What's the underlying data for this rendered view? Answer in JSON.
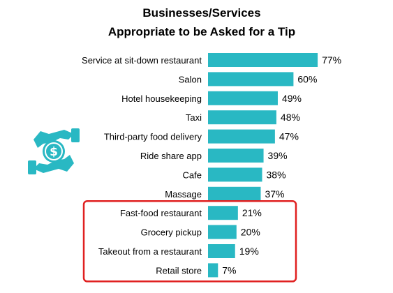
{
  "colors": {
    "bar": "#29B8C3",
    "highlight_box": "#E02020",
    "icon": "#29B8C3"
  },
  "icon": {
    "name": "hands-holding-dollar-coin-icon"
  },
  "chart_data": {
    "type": "bar",
    "orientation": "horizontal",
    "title": "Businesses/Services",
    "subtitle": "Appropriate to be Asked for a Tip",
    "categories": [
      "Service at sit-down restaurant",
      "Salon",
      "Hotel housekeeping",
      "Taxi",
      "Third-party food delivery",
      "Ride share app",
      "Cafe",
      "Massage",
      "Fast-food restaurant",
      "Grocery pickup",
      "Takeout from a restaurant",
      "Retail store"
    ],
    "values": [
      77,
      60,
      49,
      48,
      47,
      39,
      38,
      37,
      21,
      20,
      19,
      7
    ],
    "value_labels": [
      "77%",
      "60%",
      "49%",
      "48%",
      "47%",
      "39%",
      "38%",
      "37%",
      "21%",
      "20%",
      "19%",
      "7%"
    ],
    "xlim": [
      0,
      100
    ],
    "grid": false,
    "highlighted_categories": [
      "Fast-food restaurant",
      "Grocery pickup",
      "Takeout from a restaurant",
      "Retail store"
    ]
  }
}
